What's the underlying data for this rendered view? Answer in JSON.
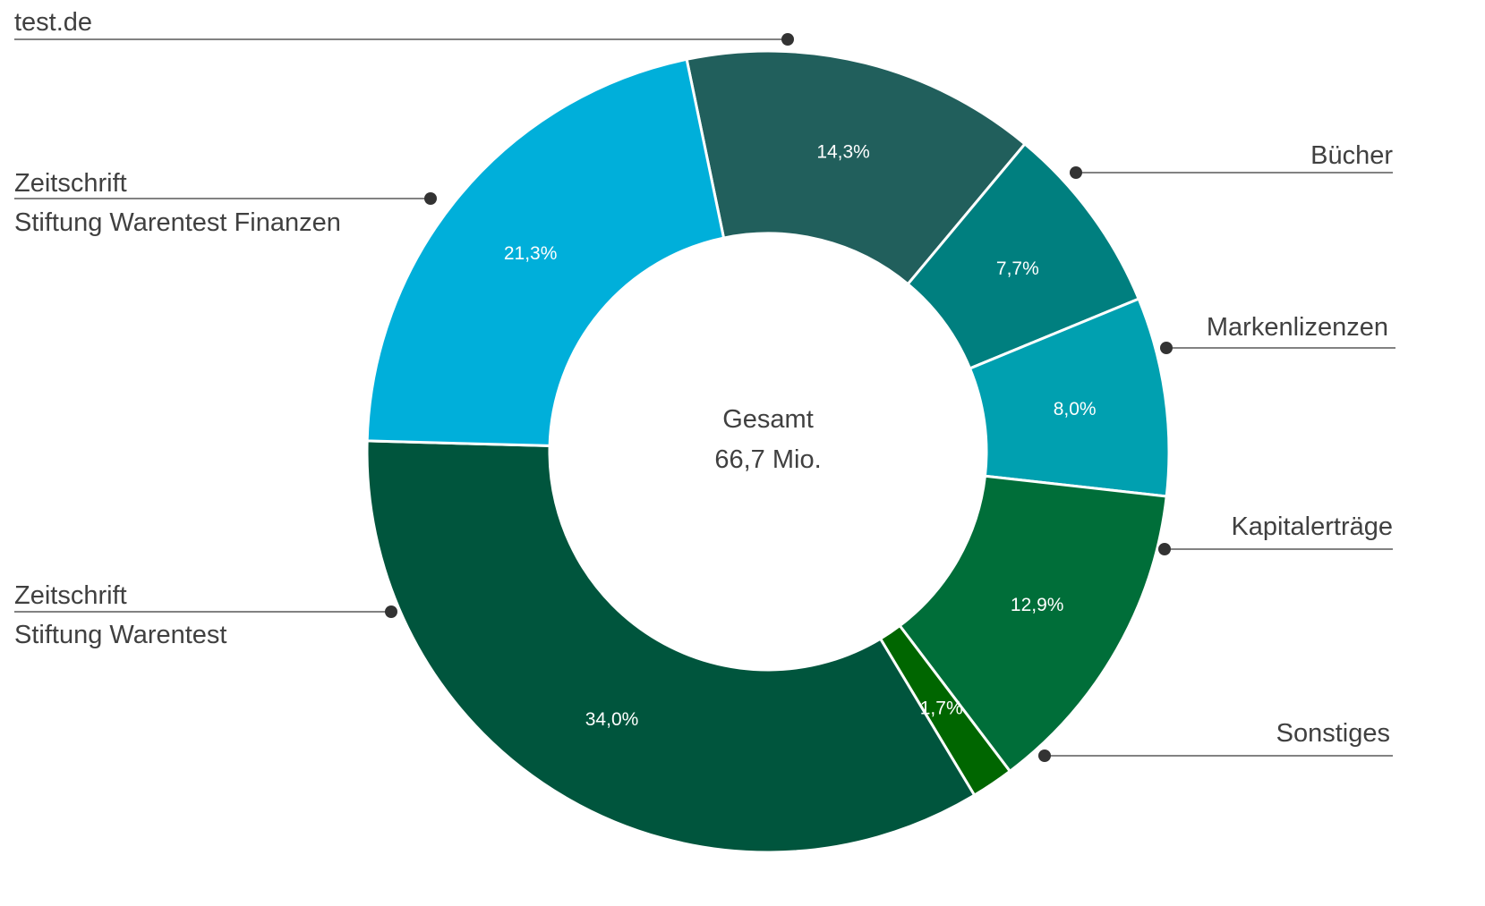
{
  "chart_data": {
    "type": "pie",
    "style": "donut",
    "start_angle_deg": -11.7,
    "center_text": {
      "line1": "Gesamt",
      "line2": "66,7 Mio."
    },
    "slices": [
      {
        "key": "testde",
        "label_lines": [
          "test.de"
        ],
        "value": 14.3,
        "pct_label": "14,3%",
        "color": "#215F5C",
        "label_side": "left"
      },
      {
        "key": "buecher",
        "label_lines": [
          "Bücher"
        ],
        "value": 7.7,
        "pct_label": "7,7%",
        "color": "#007F7F",
        "label_side": "right"
      },
      {
        "key": "markenlizenzen",
        "label_lines": [
          "Markenlizenzen"
        ],
        "value": 8.0,
        "pct_label": "8,0%",
        "color": "#00A0B0",
        "label_side": "right"
      },
      {
        "key": "kapitalertraege",
        "label_lines": [
          "Kapitalerträge"
        ],
        "value": 12.9,
        "pct_label": "12,9%",
        "color": "#006E39",
        "label_side": "right"
      },
      {
        "key": "sonstiges",
        "label_lines": [
          "Sonstiges"
        ],
        "value": 1.7,
        "pct_label": "1,7%",
        "color": "#006600",
        "label_side": "right"
      },
      {
        "key": "zeitschrift_stiftung",
        "label_lines": [
          "Zeitschrift",
          "Stiftung Warentest"
        ],
        "value": 34.0,
        "pct_label": "34,0%",
        "color": "#00553D",
        "label_side": "left"
      },
      {
        "key": "zeitschrift_finanzen",
        "label_lines": [
          "Zeitschrift",
          "Stiftung Warentest Finanzen"
        ],
        "value": 21.3,
        "pct_label": "21,3%",
        "color": "#00AFDA",
        "label_side": "left"
      }
    ]
  }
}
